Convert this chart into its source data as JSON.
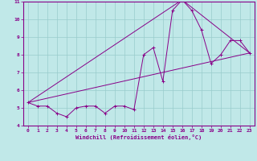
{
  "xlabel": "Windchill (Refroidissement éolien,°C)",
  "bg_color": "#c0e8e8",
  "line_color": "#880088",
  "grid_color": "#99cccc",
  "xlim": [
    -0.5,
    23.5
  ],
  "ylim": [
    4,
    11
  ],
  "yticks": [
    4,
    5,
    6,
    7,
    8,
    9,
    10,
    11
  ],
  "xticks": [
    0,
    1,
    2,
    3,
    4,
    5,
    6,
    7,
    8,
    9,
    10,
    11,
    12,
    13,
    14,
    15,
    16,
    17,
    18,
    19,
    20,
    21,
    22,
    23
  ],
  "line1_x": [
    0,
    1,
    2,
    3,
    4,
    5,
    6,
    7,
    8,
    9,
    10,
    11,
    12,
    13,
    14,
    15,
    16,
    17,
    18,
    19,
    20,
    21,
    22,
    23
  ],
  "line1_y": [
    5.3,
    5.1,
    5.1,
    4.7,
    4.5,
    5.0,
    5.1,
    5.1,
    4.7,
    5.1,
    5.1,
    4.9,
    8.0,
    8.4,
    6.5,
    10.5,
    11.1,
    10.5,
    9.4,
    7.5,
    8.0,
    8.8,
    8.8,
    8.1
  ],
  "line2_x": [
    0,
    23
  ],
  "line2_y": [
    5.3,
    8.1
  ],
  "line3_x": [
    0,
    16,
    23
  ],
  "line3_y": [
    5.3,
    11.1,
    8.1
  ]
}
